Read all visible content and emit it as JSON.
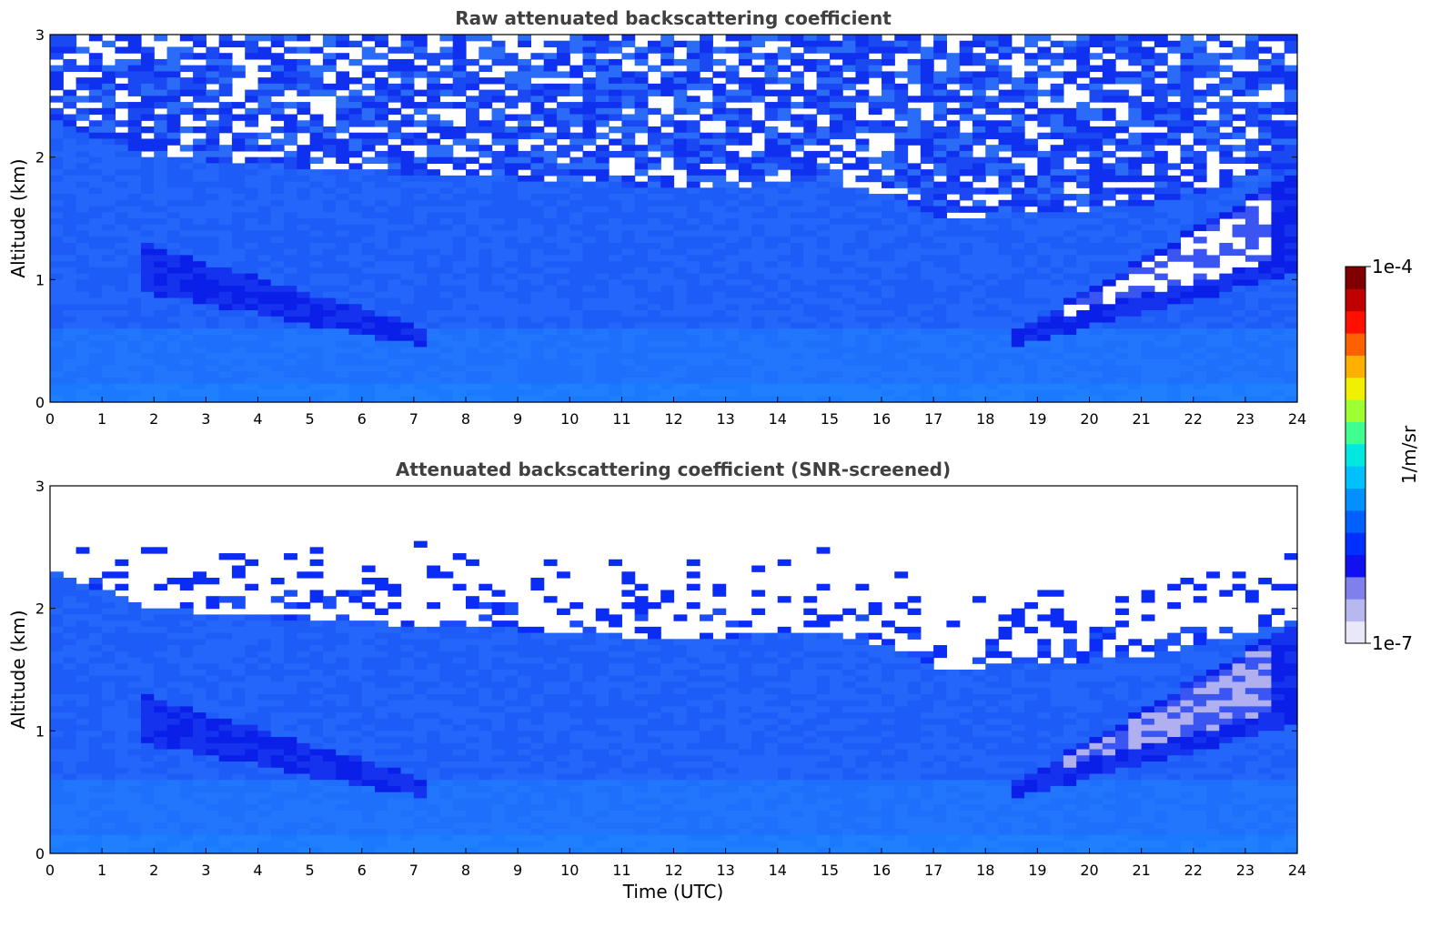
{
  "chart_data": [
    {
      "type": "heatmap",
      "title": "Raw attenuated backscattering coefficient",
      "xlabel": "",
      "ylabel": "Altitude (km)",
      "xlim": [
        0,
        24
      ],
      "ylim": [
        0,
        3
      ],
      "xticks": [
        "0",
        "1",
        "2",
        "3",
        "4",
        "5",
        "6",
        "7",
        "8",
        "9",
        "10",
        "11",
        "12",
        "13",
        "14",
        "15",
        "16",
        "17",
        "18",
        "19",
        "20",
        "21",
        "22",
        "23",
        "24"
      ],
      "yticks": [
        "0",
        "1",
        "2",
        "3"
      ],
      "screened": false,
      "features": {
        "boundary_layer_top_km": [
          [
            0,
            2.3
          ],
          [
            2,
            2.0
          ],
          [
            5,
            1.9
          ],
          [
            8,
            1.85
          ],
          [
            12,
            1.75
          ],
          [
            15,
            1.8
          ],
          [
            16.5,
            1.65
          ],
          [
            17,
            1.5
          ],
          [
            19,
            1.55
          ],
          [
            21,
            1.6
          ],
          [
            23,
            1.8
          ],
          [
            24,
            1.9
          ]
        ],
        "dark_plume_left": {
          "time_range": [
            1.7,
            7.3
          ],
          "altitude_km": [
            0.4,
            1.3
          ]
        },
        "dark_plume_right": {
          "time_range": [
            18.5,
            24
          ],
          "altitude_km": [
            0.5,
            1.9
          ]
        }
      }
    },
    {
      "type": "heatmap",
      "title": "Attenuated backscattering coefficient (SNR-screened)",
      "xlabel": "Time (UTC)",
      "ylabel": "Altitude (km)",
      "xlim": [
        0,
        24
      ],
      "ylim": [
        0,
        3
      ],
      "xticks": [
        "0",
        "1",
        "2",
        "3",
        "4",
        "5",
        "6",
        "7",
        "8",
        "9",
        "10",
        "11",
        "12",
        "13",
        "14",
        "15",
        "16",
        "17",
        "18",
        "19",
        "20",
        "21",
        "22",
        "23",
        "24"
      ],
      "yticks": [
        "0",
        "1",
        "2",
        "3"
      ],
      "screened": true,
      "features": {
        "boundary_layer_top_km": [
          [
            0,
            2.3
          ],
          [
            2,
            2.0
          ],
          [
            5,
            1.9
          ],
          [
            8,
            1.85
          ],
          [
            12,
            1.75
          ],
          [
            15,
            1.8
          ],
          [
            16.5,
            1.65
          ],
          [
            17,
            1.5
          ],
          [
            19,
            1.55
          ],
          [
            21,
            1.6
          ],
          [
            23,
            1.8
          ],
          [
            24,
            1.9
          ]
        ],
        "dark_plume_left": {
          "time_range": [
            1.7,
            7.3
          ],
          "altitude_km": [
            0.4,
            1.3
          ]
        },
        "dark_plume_right": {
          "time_range": [
            18.5,
            24
          ],
          "altitude_km": [
            0.5,
            1.9
          ]
        }
      }
    }
  ],
  "colorbar": {
    "label": "1/m/sr",
    "max_label": "1e-4",
    "min_label": "1e-7",
    "scale": "log",
    "colors": [
      "#e8e8f8",
      "#b8b8f0",
      "#8080ec",
      "#1010f0",
      "#0030ff",
      "#0060ff",
      "#0090ff",
      "#00c0ff",
      "#00e8e0",
      "#40ff90",
      "#a0ff30",
      "#f0f000",
      "#ffb000",
      "#ff6000",
      "#ff1000",
      "#c00000",
      "#800000"
    ]
  }
}
